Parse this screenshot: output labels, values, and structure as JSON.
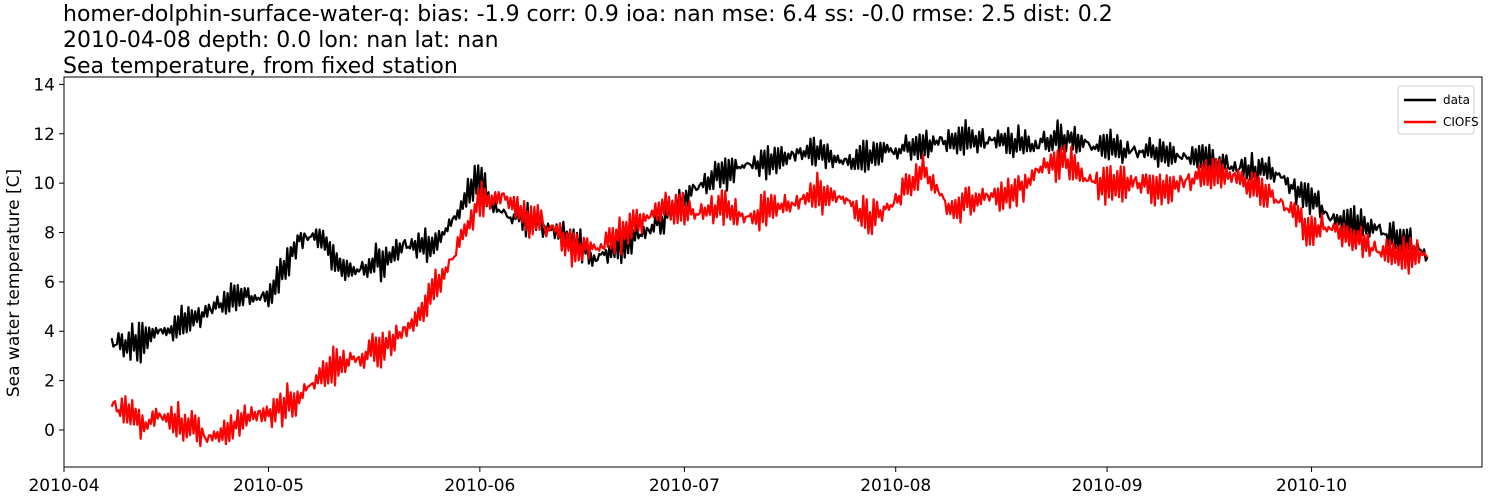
{
  "chart_data": {
    "type": "line",
    "title_lines": [
      "homer-dolphin-surface-water-q: bias: -1.9  corr: 0.9  ioa: nan  mse: 6.4  ss: -0.0  rmse: 2.5  dist: 0.2",
      "2010-04-08 depth: 0.0 lon: nan lat: nan",
      "Sea temperature, from fixed station"
    ],
    "xlabel": "",
    "ylabel": "Sea water temperature [C]",
    "x_ticks": [
      "2010-04",
      "2010-05",
      "2010-06",
      "2010-07",
      "2010-08",
      "2010-09",
      "2010-10"
    ],
    "y_ticks": [
      0,
      2,
      4,
      6,
      8,
      10,
      12,
      14
    ],
    "xlim": [
      "2010-04-01",
      "2010-10-26"
    ],
    "ylim": [
      -1.5,
      14.3
    ],
    "grid": false,
    "legend_position": "top-right",
    "series": [
      {
        "name": "data",
        "color": "#000000",
        "x": [
          "2010-04-08",
          "2010-04-12",
          "2010-04-15",
          "2010-04-18",
          "2010-04-22",
          "2010-04-25",
          "2010-04-28",
          "2010-05-01",
          "2010-05-05",
          "2010-05-08",
          "2010-05-10",
          "2010-05-12",
          "2010-05-15",
          "2010-05-18",
          "2010-05-21",
          "2010-05-24",
          "2010-05-27",
          "2010-05-30",
          "2010-06-01",
          "2010-06-03",
          "2010-06-06",
          "2010-06-10",
          "2010-06-14",
          "2010-06-18",
          "2010-06-22",
          "2010-06-25",
          "2010-06-28",
          "2010-07-01",
          "2010-07-05",
          "2010-07-10",
          "2010-07-15",
          "2010-07-20",
          "2010-07-25",
          "2010-07-30",
          "2010-08-02",
          "2010-08-05",
          "2010-08-10",
          "2010-08-15",
          "2010-08-20",
          "2010-08-25",
          "2010-08-30",
          "2010-09-05",
          "2010-09-10",
          "2010-09-15",
          "2010-09-20",
          "2010-09-25",
          "2010-09-30",
          "2010-10-05",
          "2010-10-10",
          "2010-10-15",
          "2010-10-18"
        ],
        "values": [
          3.6,
          3.5,
          4.0,
          4.2,
          4.8,
          5.3,
          5.4,
          5.4,
          7.5,
          8.0,
          7.2,
          6.5,
          6.5,
          6.9,
          7.5,
          7.4,
          8.0,
          9.5,
          10.2,
          9.0,
          8.6,
          8.3,
          7.8,
          6.9,
          7.5,
          8.0,
          8.5,
          9.5,
          10.2,
          10.7,
          11.0,
          11.3,
          10.8,
          11.3,
          11.3,
          11.6,
          11.8,
          11.7,
          11.5,
          11.8,
          11.5,
          11.3,
          11.2,
          11.0,
          10.6,
          10.5,
          9.5,
          8.4,
          8.2,
          7.6,
          7.0
        ]
      },
      {
        "name": "CIOFS",
        "color": "#ff0000",
        "x": [
          "2010-04-08",
          "2010-04-11",
          "2010-04-13",
          "2010-04-15",
          "2010-04-18",
          "2010-04-22",
          "2010-04-25",
          "2010-04-28",
          "2010-05-01",
          "2010-05-05",
          "2010-05-08",
          "2010-05-12",
          "2010-05-15",
          "2010-05-19",
          "2010-05-22",
          "2010-05-25",
          "2010-05-28",
          "2010-05-31",
          "2010-06-02",
          "2010-06-05",
          "2010-06-08",
          "2010-06-12",
          "2010-06-15",
          "2010-06-19",
          "2010-06-22",
          "2010-06-25",
          "2010-06-28",
          "2010-07-02",
          "2010-07-06",
          "2010-07-10",
          "2010-07-15",
          "2010-07-20",
          "2010-07-24",
          "2010-07-28",
          "2010-08-01",
          "2010-08-05",
          "2010-08-09",
          "2010-08-14",
          "2010-08-18",
          "2010-08-22",
          "2010-08-26",
          "2010-08-30",
          "2010-09-05",
          "2010-09-10",
          "2010-09-15",
          "2010-09-20",
          "2010-09-25",
          "2010-09-30",
          "2010-10-05",
          "2010-10-10",
          "2010-10-15",
          "2010-10-18"
        ],
        "values": [
          1.0,
          0.5,
          0.2,
          0.6,
          0.3,
          -0.3,
          0.0,
          0.5,
          0.7,
          1.2,
          2.0,
          2.7,
          3.0,
          3.6,
          4.2,
          5.5,
          7.0,
          8.8,
          9.5,
          9.3,
          8.7,
          8.0,
          7.3,
          7.5,
          8.0,
          8.5,
          9.0,
          8.8,
          9.0,
          8.6,
          9.0,
          9.5,
          9.4,
          8.5,
          9.3,
          10.5,
          9.0,
          9.4,
          9.5,
          10.5,
          11.0,
          10.0,
          10.0,
          9.8,
          10.3,
          10.2,
          9.5,
          8.4,
          8.0,
          7.3,
          7.1,
          7.0
        ]
      }
    ]
  }
}
